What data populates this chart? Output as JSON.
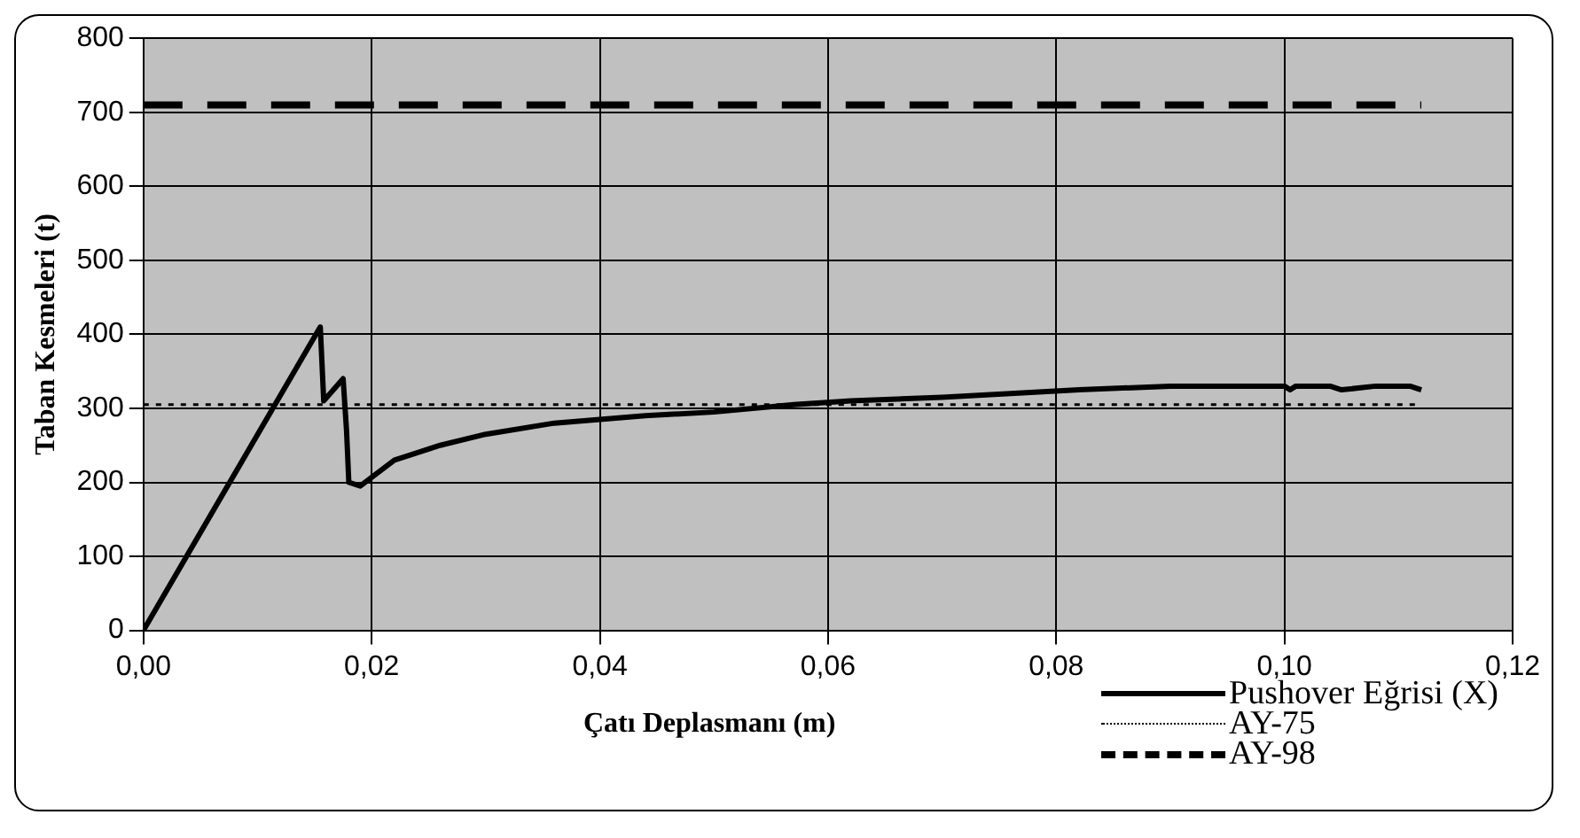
{
  "chart_data": {
    "type": "line",
    "xlabel": "Çatı Deplasmanı (m)",
    "ylabel": "Taban Kesmeleri (t)",
    "xlim": [
      0,
      0.12
    ],
    "xticks": [
      {
        "value": 0,
        "label": "0,00"
      },
      {
        "value": 0.02,
        "label": "0,02"
      },
      {
        "value": 0.04,
        "label": "0,04"
      },
      {
        "value": 0.06,
        "label": "0,06"
      },
      {
        "value": 0.08,
        "label": "0,08"
      },
      {
        "value": 0.1,
        "label": "0,10"
      },
      {
        "value": 0.12,
        "label": "0,12"
      }
    ],
    "ylim": [
      0,
      800
    ],
    "yticks": [
      0,
      100,
      200,
      300,
      400,
      500,
      600,
      700,
      800
    ],
    "grid": true,
    "legend": "bottom right",
    "marker": "none",
    "series": [
      {
        "name": "Pushover Eğrisi (X)",
        "color": "#000000",
        "line_style": "solid",
        "x": [
          0,
          0.0155,
          0.0158,
          0.0175,
          0.0178,
          0.018,
          0.019,
          0.022,
          0.026,
          0.03,
          0.036,
          0.044,
          0.05,
          0.057,
          0.062,
          0.07,
          0.076,
          0.082,
          0.09,
          0.1,
          0.1005,
          0.101,
          0.104,
          0.105,
          0.108,
          0.111,
          0.112
        ],
        "values": [
          0,
          410,
          310,
          340,
          270,
          200,
          195,
          230,
          250,
          265,
          280,
          290,
          295,
          305,
          310,
          315,
          320,
          325,
          330,
          330,
          325,
          330,
          330,
          325,
          330,
          330,
          325
        ]
      },
      {
        "name": "AY-75",
        "color": "#000000",
        "line_style": "dotted",
        "x": [
          0,
          0.112
        ],
        "values": [
          305,
          305
        ]
      },
      {
        "name": "AY-98",
        "color": "#000000",
        "line_style": "dashed",
        "x": [
          0,
          0.112
        ],
        "values": [
          710,
          710
        ]
      }
    ]
  }
}
